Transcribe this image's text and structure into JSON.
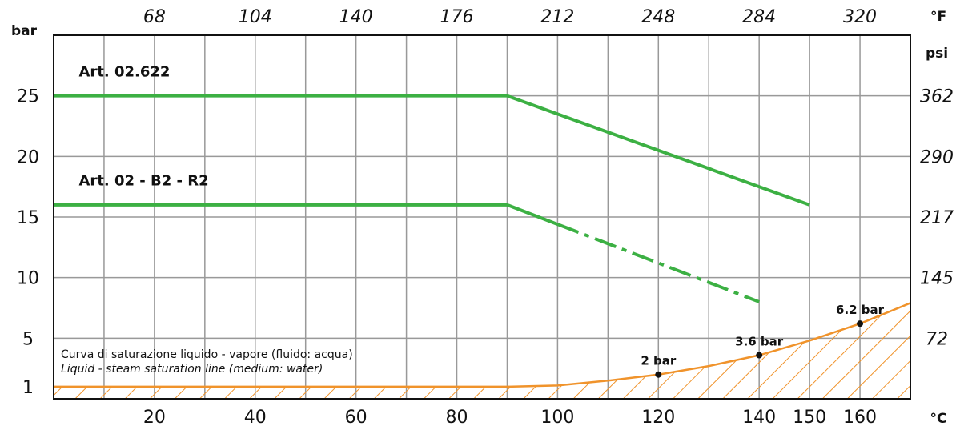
{
  "chart_data": {
    "type": "line",
    "xlabel": "°C",
    "ylabel": "bar",
    "secondary_xlabel": "°F",
    "secondary_ylabel": "psi",
    "x_range": [
      0,
      170
    ],
    "y_range": [
      0,
      30
    ],
    "x_ticks": [
      20,
      40,
      60,
      80,
      100,
      120,
      140,
      150,
      160
    ],
    "y_ticks": [
      1,
      5,
      10,
      15,
      20,
      25
    ],
    "top_ticks": [
      {
        "x": 20,
        "label": "68"
      },
      {
        "x": 40,
        "label": "104"
      },
      {
        "x": 60,
        "label": "140"
      },
      {
        "x": 80,
        "label": "176"
      },
      {
        "x": 100,
        "label": "212"
      },
      {
        "x": 120,
        "label": "248"
      },
      {
        "x": 140,
        "label": "284"
      },
      {
        "x": 160,
        "label": "320"
      }
    ],
    "right_ticks": [
      {
        "y": 25,
        "label": "362"
      },
      {
        "y": 20,
        "label": "290"
      },
      {
        "y": 15,
        "label": "217"
      },
      {
        "y": 10,
        "label": "145"
      },
      {
        "y": 5,
        "label": "72"
      }
    ],
    "grid_x": [
      10,
      20,
      30,
      40,
      50,
      60,
      70,
      80,
      90,
      100,
      110,
      120,
      130,
      140,
      150,
      160
    ],
    "grid_y": [
      5,
      10,
      15,
      20,
      25
    ],
    "series": [
      {
        "name": "Art. 02.622",
        "color": "#3cb043",
        "style": "solid",
        "points": [
          [
            0,
            25
          ],
          [
            90,
            25
          ],
          [
            150,
            16
          ]
        ]
      },
      {
        "name": "Art. 02 - B2 - R2",
        "color": "#3cb043",
        "style": "solid",
        "points": [
          [
            0,
            16
          ],
          [
            90,
            16
          ],
          [
            100,
            14.4
          ]
        ]
      },
      {
        "name": "",
        "color": "#3cb043",
        "style": "dashdot",
        "points": [
          [
            100,
            14.4
          ],
          [
            140,
            8
          ]
        ]
      }
    ],
    "saturation_curve": {
      "color": "#f0932b",
      "hatched": true,
      "points": [
        [
          0,
          1
        ],
        [
          20,
          1
        ],
        [
          40,
          1
        ],
        [
          60,
          1
        ],
        [
          80,
          1
        ],
        [
          90,
          1
        ],
        [
          100,
          1.1
        ],
        [
          110,
          1.5
        ],
        [
          120,
          2
        ],
        [
          130,
          2.7
        ],
        [
          140,
          3.6
        ],
        [
          150,
          4.8
        ],
        [
          160,
          6.2
        ],
        [
          170,
          7.9
        ]
      ],
      "label_lines": [
        {
          "text": "Curva di saturazione liquido - vapore (fluido: acqua)",
          "italic": false
        },
        {
          "text": "Liquid - steam saturation line (medium: water)",
          "italic": true
        }
      ]
    },
    "annotations": [
      {
        "x": 120,
        "y": 2,
        "text": "2 bar"
      },
      {
        "x": 140,
        "y": 3.6,
        "text": "3.6 bar"
      },
      {
        "x": 160,
        "y": 6.2,
        "text": "6.2 bar"
      }
    ],
    "series_label_positions": [
      {
        "series": 0,
        "x": 5,
        "y": 27
      },
      {
        "series": 1,
        "x": 5,
        "y": 18
      }
    ],
    "colors": {
      "grid": "#999999",
      "axis": "#111111",
      "green": "#3cb043",
      "orange": "#f0932b"
    }
  }
}
